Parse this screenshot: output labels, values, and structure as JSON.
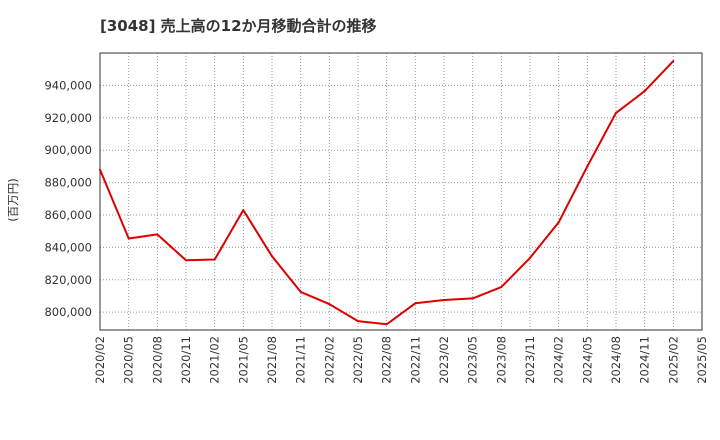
{
  "chart_data": {
    "type": "line",
    "title": "[3048]  売上高の12か月移動合計の推移",
    "ylabel": "(百万円)",
    "xlabel": "",
    "ylim": [
      789000,
      960000
    ],
    "yticks": [
      800000,
      820000,
      840000,
      860000,
      880000,
      900000,
      920000,
      940000
    ],
    "ytick_labels": [
      "800,000",
      "820,000",
      "840,000",
      "860,000",
      "880,000",
      "900,000",
      "920,000",
      "940,000"
    ],
    "xticks": [
      "2020/02",
      "2020/05",
      "2020/08",
      "2020/11",
      "2021/02",
      "2021/05",
      "2021/08",
      "2021/11",
      "2022/02",
      "2022/05",
      "2022/08",
      "2022/11",
      "2023/02",
      "2023/05",
      "2023/08",
      "2023/11",
      "2024/02",
      "2024/05",
      "2024/08",
      "2024/11",
      "2025/02",
      "2025/05"
    ],
    "grid": true,
    "series": [
      {
        "name": "売上高",
        "color": "#dd0000",
        "values": [
          888000,
          845500,
          848000,
          832000,
          832500,
          863000,
          834500,
          812500,
          805000,
          794500,
          792500,
          805500,
          807500,
          808500,
          815500,
          833500,
          855500,
          890000,
          923000,
          936500,
          955000
        ]
      }
    ]
  }
}
